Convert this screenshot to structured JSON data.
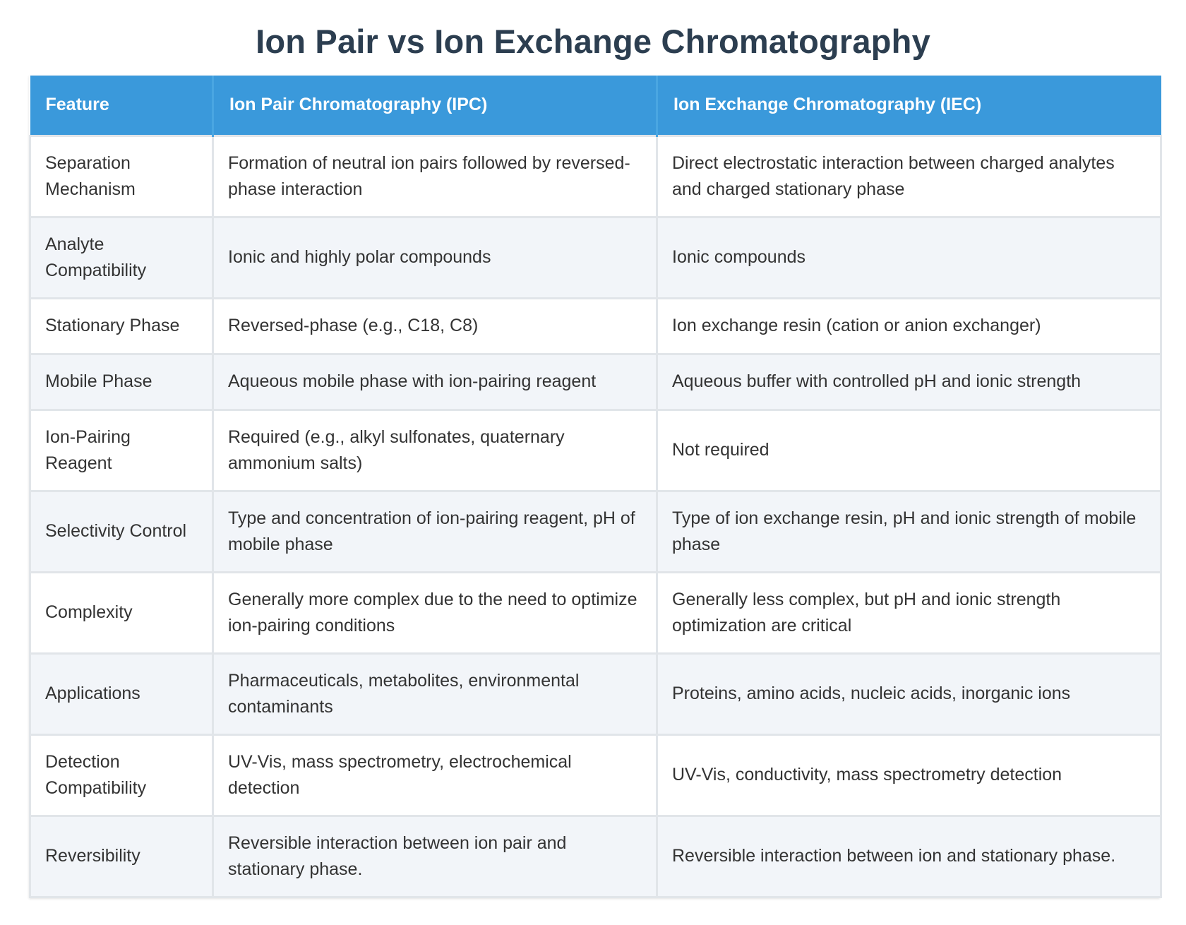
{
  "title": "Ion Pair vs Ion Exchange Chromatography",
  "table": {
    "headers": [
      "Feature",
      "Ion Pair Chromatography (IPC)",
      "Ion Exchange Chromatography (IEC)"
    ],
    "rows": [
      [
        "Separation Mechanism",
        "Formation of neutral ion pairs followed by reversed-phase interaction",
        "Direct electrostatic interaction between charged analytes and charged stationary phase"
      ],
      [
        "Analyte Compatibility",
        "Ionic and highly polar compounds",
        "Ionic compounds"
      ],
      [
        "Stationary Phase",
        "Reversed-phase (e.g., C18, C8)",
        "Ion exchange resin (cation or anion exchanger)"
      ],
      [
        "Mobile Phase",
        "Aqueous mobile phase with ion-pairing reagent",
        "Aqueous buffer with controlled pH and ionic strength"
      ],
      [
        "Ion-Pairing Reagent",
        "Required (e.g., alkyl sulfonates, quaternary ammonium salts)",
        "Not required"
      ],
      [
        "Selectivity Control",
        "Type and concentration of ion-pairing reagent, pH of mobile phase",
        "Type of ion exchange resin, pH and ionic strength of mobile phase"
      ],
      [
        "Complexity",
        "Generally more complex due to the need to optimize ion-pairing conditions",
        "Generally less complex, but pH and ionic strength optimization are critical"
      ],
      [
        "Applications",
        "Pharmaceuticals, metabolites, environmental contaminants",
        "Proteins, amino acids, nucleic acids, inorganic ions"
      ],
      [
        "Detection Compatibility",
        "UV-Vis, mass spectrometry, electrochemical detection",
        "UV-Vis, conductivity, mass spectrometry detection"
      ],
      [
        "Reversibility",
        "Reversible interaction between ion pair and stationary phase.",
        "Reversible interaction between ion and stationary phase."
      ]
    ]
  },
  "colors": {
    "title": "#2c3e50",
    "header_background": "#3a99db",
    "header_text": "#ffffff",
    "row_alt_background": "#f2f5f9",
    "border": "#e1e5e9"
  }
}
